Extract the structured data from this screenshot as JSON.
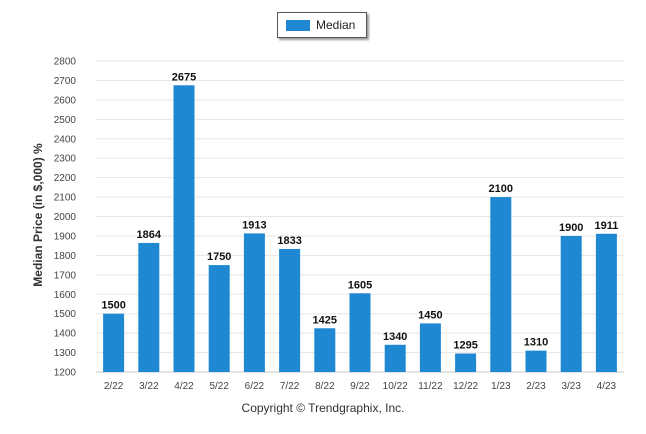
{
  "legend": {
    "label": "Median",
    "color": "#1e88d2"
  },
  "footer": {
    "text": "Copyright © Trendgraphix, Inc."
  },
  "chart_data": {
    "type": "bar",
    "categories": [
      "2/22",
      "3/22",
      "4/22",
      "5/22",
      "6/22",
      "7/22",
      "8/22",
      "9/22",
      "10/22",
      "11/22",
      "12/22",
      "1/23",
      "2/23",
      "3/23",
      "4/23"
    ],
    "series": [
      {
        "name": "Median",
        "values": [
          1500,
          1864,
          2675,
          1750,
          1913,
          1833,
          1425,
          1605,
          1340,
          1450,
          1295,
          2100,
          1310,
          1900,
          1911
        ]
      }
    ],
    "title": "",
    "xlabel": "",
    "ylabel": "Median Price (in $,000) %",
    "ylim": [
      1200,
      2800
    ],
    "yticks": [
      1200,
      1300,
      1400,
      1500,
      1600,
      1700,
      1800,
      1900,
      2000,
      2100,
      2200,
      2300,
      2400,
      2500,
      2600,
      2700,
      2800
    ],
    "grid": true,
    "legend_position": "top-center",
    "bar_color": "#1e88d2"
  }
}
